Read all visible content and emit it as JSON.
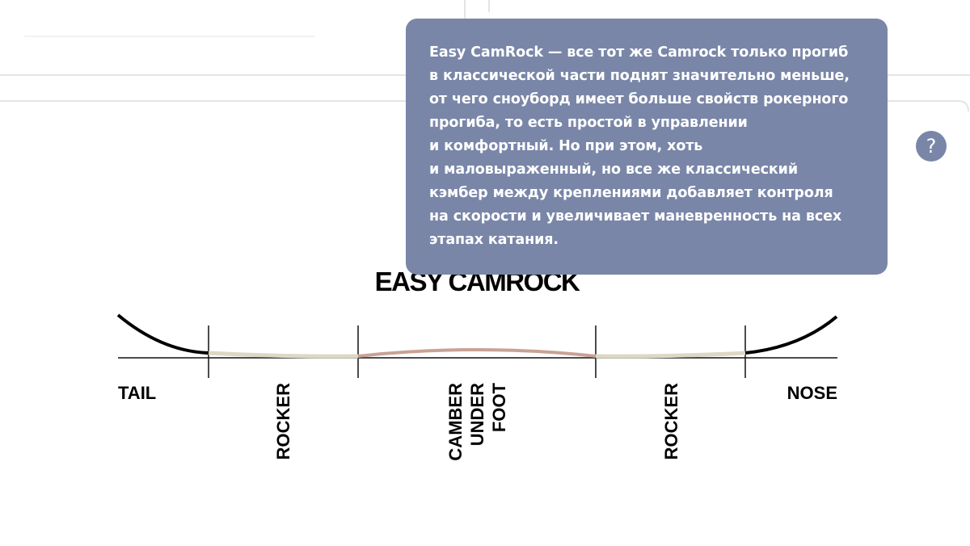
{
  "tooltip": {
    "lines": [
      "Easy CamRock — все тот же Camrock только прогиб",
      "в классической части поднят значительно меньше,",
      "от чего сноуборд имеет больше свойств рокерного",
      "прогиба, то есть простой в управлении",
      "и комфортный. Но при этом, хоть",
      "и маловыраженный, но все же классический",
      "кэмбер между креплениями добавляет контроля",
      "на скорости и увеличивает маневренность на всех",
      "этапах катания."
    ]
  },
  "help_button": {
    "label": "?"
  },
  "diagram": {
    "title": "EASY CAMROCK",
    "tail": "TAIL",
    "nose": "NOSE",
    "zones": [
      {
        "lines": [
          "ROCKER"
        ]
      },
      {
        "lines": [
          "CAMBER",
          "UNDER",
          "FOOT"
        ]
      },
      {
        "lines": [
          "ROCKER"
        ]
      }
    ]
  }
}
